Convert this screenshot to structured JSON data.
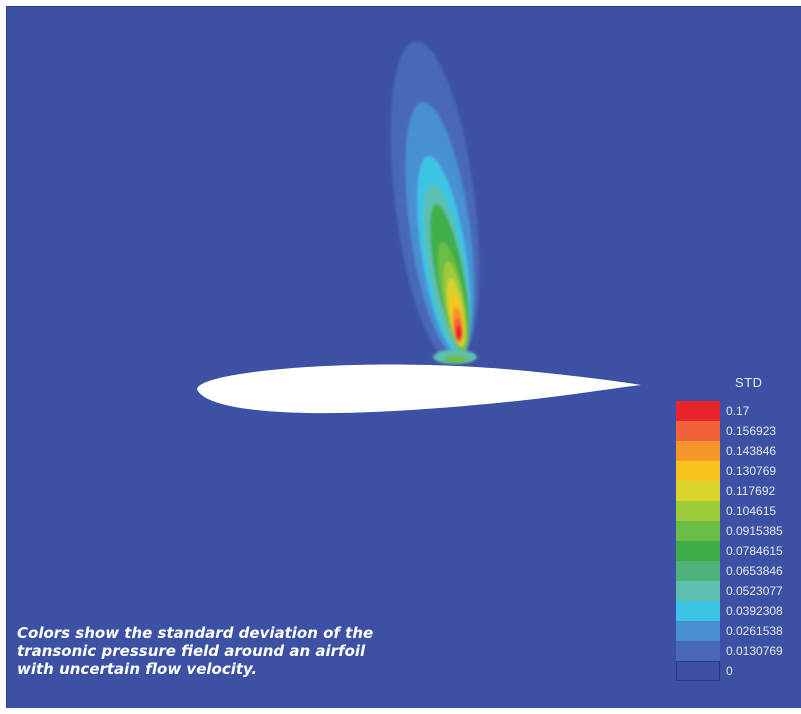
{
  "chart_data": {
    "type": "heatmap",
    "title": "",
    "legend": {
      "title": "STD",
      "placement": "right",
      "levels": [
        {
          "value": "0.17",
          "color": "#e8242a"
        },
        {
          "value": "0.156923",
          "color": "#f2613a"
        },
        {
          "value": "0.143846",
          "color": "#f5952c"
        },
        {
          "value": "0.130769",
          "color": "#f8c51d"
        },
        {
          "value": "0.117692",
          "color": "#d8d42a"
        },
        {
          "value": "0.104615",
          "color": "#9ecb3c"
        },
        {
          "value": "0.0915385",
          "color": "#6cbd45"
        },
        {
          "value": "0.0784615",
          "color": "#3fae49"
        },
        {
          "value": "0.0653846",
          "color": "#4fb27a"
        },
        {
          "value": "0.0523077",
          "color": "#5bc0b0"
        },
        {
          "value": "0.0392308",
          "color": "#3dc4e5"
        },
        {
          "value": "0.0261538",
          "color": "#4a8fd3"
        },
        {
          "value": "0.0130769",
          "color": "#4a68b8"
        },
        {
          "value": "0",
          "color": "#3c51a3"
        }
      ]
    }
  },
  "caption": [
    "Colors show the standard deviation of the",
    "transonic pressure field around an airfoil",
    "with uncertain flow velocity."
  ],
  "colors": {
    "background": "#3c51a3",
    "airfoil": "#ffffff"
  }
}
